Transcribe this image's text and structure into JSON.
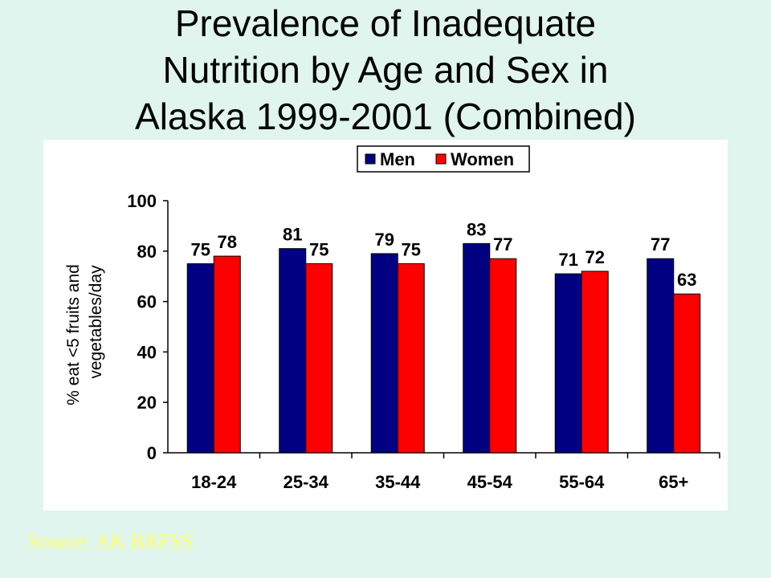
{
  "title_lines": [
    "Prevalence of Inadequate",
    "Nutrition by Age and Sex in",
    "Alaska 1999-2001 (Combined)"
  ],
  "source": "Source: AK BRFSS",
  "colors": {
    "background": "#dff5ee",
    "men": "#000080",
    "women": "#ff0000",
    "source_text": "#ffff66"
  },
  "chart_data": {
    "type": "bar",
    "title": "",
    "ylabel_lines": [
      "% eat <5 fruits and",
      "vegetables/day"
    ],
    "xlabel": "",
    "categories": [
      "18-24",
      "25-34",
      "35-44",
      "45-54",
      "55-64",
      "65+"
    ],
    "series": [
      {
        "name": "Men",
        "color": "#000080",
        "values": [
          75,
          81,
          79,
          83,
          71,
          77
        ]
      },
      {
        "name": "Women",
        "color": "#ff0000",
        "values": [
          78,
          75,
          75,
          77,
          72,
          63
        ]
      }
    ],
    "ylim": [
      0,
      100
    ],
    "yticks": [
      0,
      20,
      40,
      60,
      80,
      100
    ],
    "grid": false,
    "legend_position": "top"
  }
}
